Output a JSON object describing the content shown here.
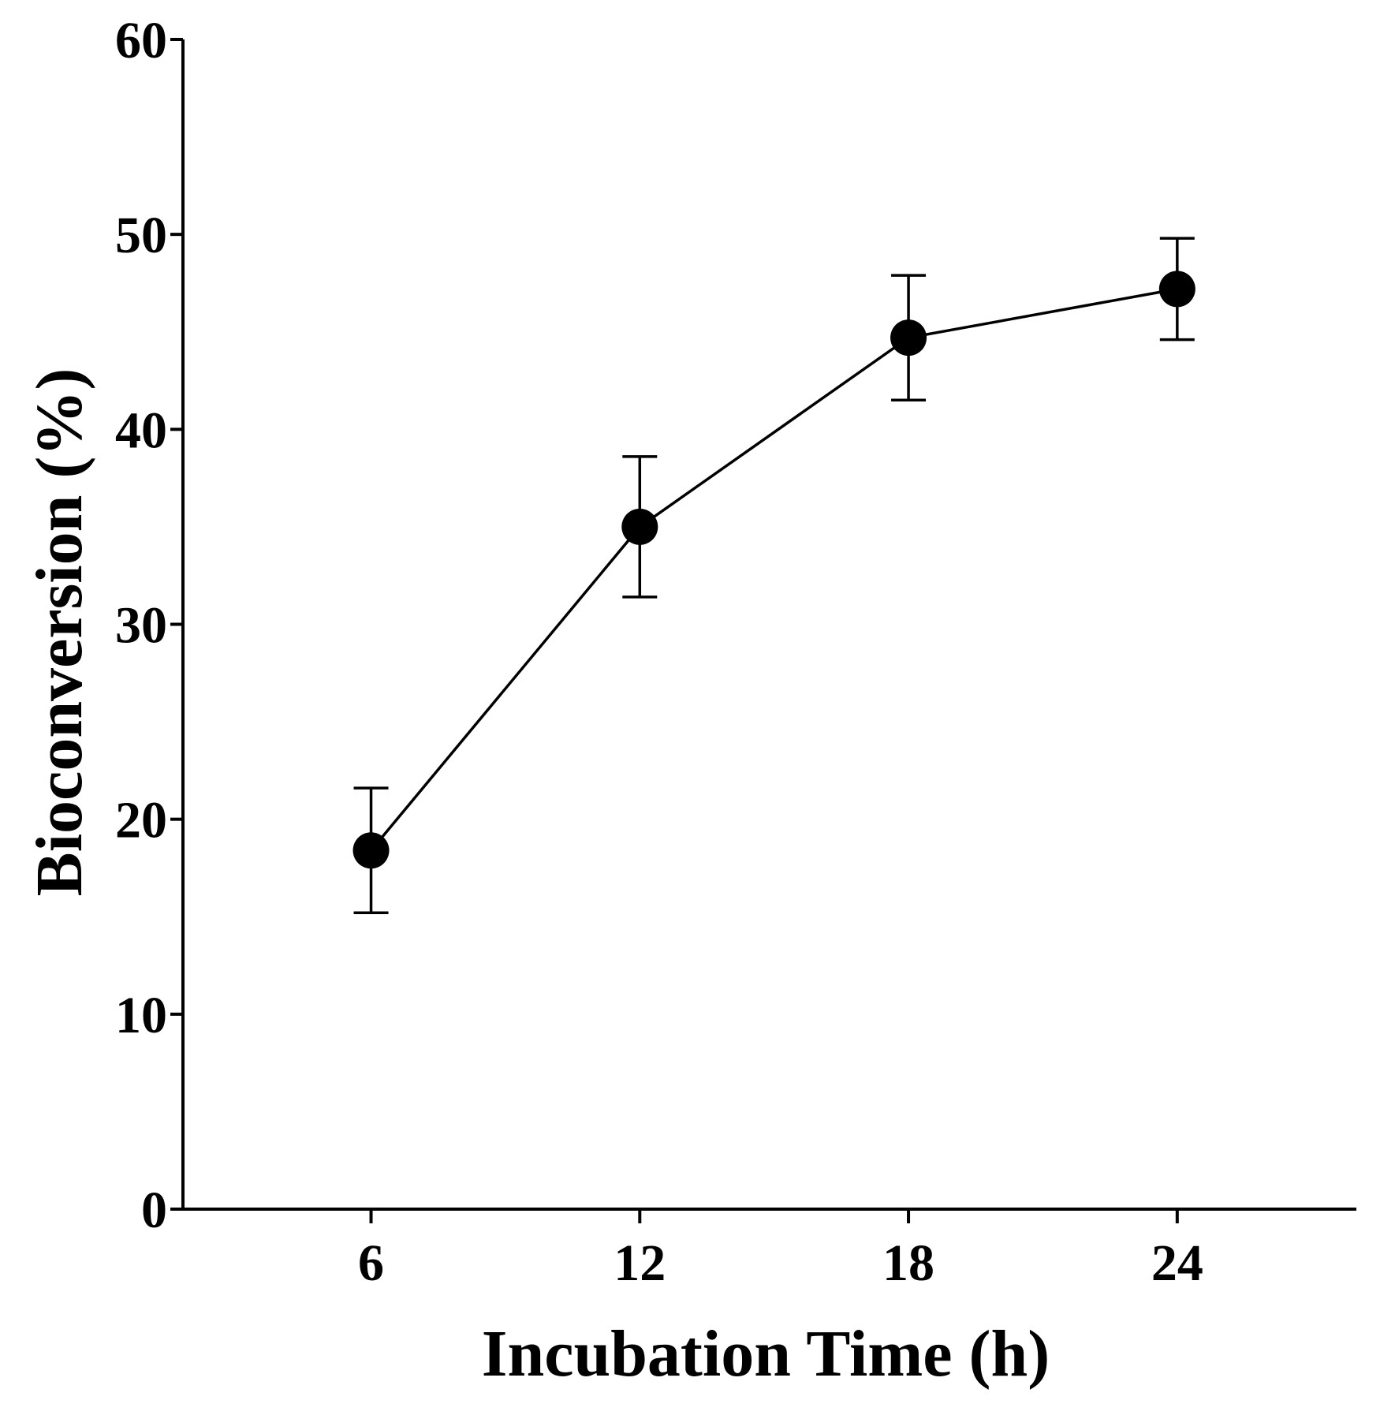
{
  "chart_data": {
    "type": "line",
    "title": "",
    "xlabel": "Incubation Time (h)",
    "ylabel": "Bioconversion (%)",
    "x": [
      6,
      12,
      18,
      24
    ],
    "x_tick_labels": [
      "6",
      "12",
      "18",
      "24"
    ],
    "xlim": [
      1.8,
      28
    ],
    "ylim": [
      0,
      60
    ],
    "y_ticks": [
      0,
      10,
      20,
      30,
      40,
      50,
      60
    ],
    "y_tick_labels": [
      "0",
      "10",
      "20",
      "30",
      "40",
      "50",
      "60"
    ],
    "grid": false,
    "legend": "none",
    "series": [
      {
        "name": "Bioconversion",
        "values": [
          18.4,
          35.0,
          44.7,
          47.2
        ],
        "error": [
          3.2,
          3.6,
          3.2,
          2.6
        ],
        "color": "#000000",
        "marker": "circle"
      }
    ]
  }
}
